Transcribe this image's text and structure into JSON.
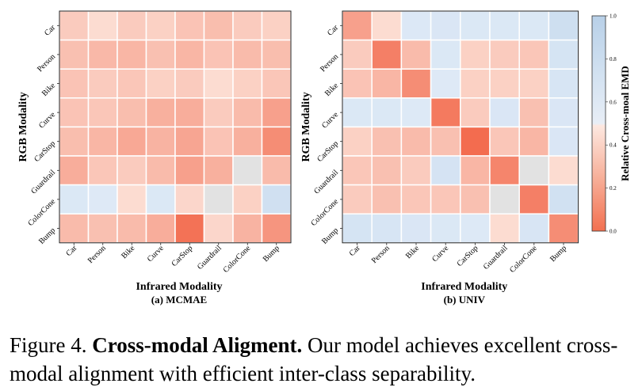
{
  "chart_data": [
    {
      "type": "heatmap",
      "subtitle": "(a) MCMAE",
      "xlabel": "Infrared Modality",
      "ylabel": "RGB Modality",
      "x_categories": [
        "Car",
        "Person",
        "Bike",
        "Curve",
        "CarStop",
        "Guardrail",
        "ColorCone",
        "Bump"
      ],
      "y_categories": [
        "Car",
        "Person",
        "Bike",
        "Curve",
        "CarStop",
        "Guardrail",
        "ColorCone",
        "Bump"
      ],
      "values": [
        [
          0.38,
          0.44,
          0.38,
          0.4,
          0.35,
          0.33,
          0.38,
          0.4
        ],
        [
          0.34,
          0.31,
          0.3,
          0.34,
          0.3,
          0.35,
          0.32,
          0.33
        ],
        [
          0.35,
          0.38,
          0.36,
          0.4,
          0.38,
          0.44,
          0.4,
          0.36
        ],
        [
          0.35,
          0.36,
          0.33,
          0.28,
          0.27,
          0.38,
          0.32,
          0.22
        ],
        [
          0.33,
          0.3,
          0.25,
          0.29,
          0.24,
          0.35,
          0.28,
          0.15
        ],
        [
          0.27,
          0.36,
          0.38,
          0.32,
          0.22,
          0.28,
          0.5,
          0.32
        ],
        [
          0.58,
          0.55,
          0.44,
          0.58,
          0.42,
          0.5,
          0.4,
          0.72
        ],
        [
          0.32,
          0.34,
          0.32,
          0.27,
          0.05,
          0.42,
          0.29,
          0.18
        ]
      ]
    },
    {
      "type": "heatmap",
      "subtitle": "(b) UNIV",
      "xlabel": "Infrared Modality",
      "ylabel": "RGB Modality",
      "x_categories": [
        "Car",
        "Person",
        "Bike",
        "Curve",
        "CarStop",
        "Guardrail",
        "ColorCone",
        "Bump"
      ],
      "y_categories": [
        "Car",
        "Person",
        "Bike",
        "Curve",
        "CarStop",
        "Guardrail",
        "ColorCone",
        "Bump"
      ],
      "values": [
        [
          0.22,
          0.44,
          0.57,
          0.6,
          0.58,
          0.58,
          0.58,
          0.74
        ],
        [
          0.38,
          0.1,
          0.32,
          0.58,
          0.4,
          0.38,
          0.36,
          0.65
        ],
        [
          0.35,
          0.3,
          0.15,
          0.55,
          0.4,
          0.4,
          0.4,
          0.63
        ],
        [
          0.58,
          0.58,
          0.56,
          0.08,
          0.38,
          0.6,
          0.34,
          0.6
        ],
        [
          0.4,
          0.34,
          0.32,
          0.34,
          0.03,
          0.36,
          0.3,
          0.6
        ],
        [
          0.36,
          0.34,
          0.38,
          0.66,
          0.3,
          0.12,
          0.5,
          0.44
        ],
        [
          0.38,
          0.34,
          0.36,
          0.36,
          0.34,
          0.5,
          0.1,
          0.7
        ],
        [
          0.65,
          0.63,
          0.6,
          0.58,
          0.56,
          0.44,
          0.62,
          0.15
        ]
      ]
    }
  ],
  "colorbar": {
    "label": "Relative Cross-moal EMD",
    "ticks": [
      "0.0",
      "0.2",
      "0.4",
      "0.6",
      "0.8",
      "1.0"
    ],
    "range": [
      0,
      1
    ]
  },
  "caption": {
    "prefix": "Figure 4.",
    "title": "Cross-modal Aligment.",
    "text": "Our model achieves excellent cross-modal alignment with efficient inter-class separability."
  }
}
